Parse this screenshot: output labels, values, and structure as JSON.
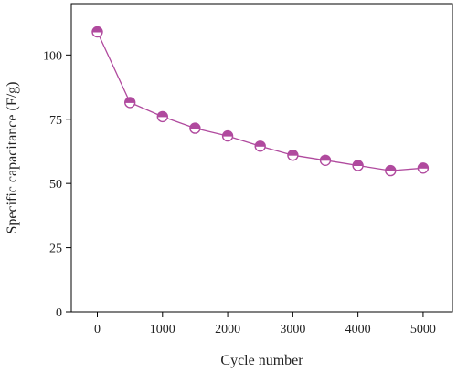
{
  "chart_data": {
    "type": "line",
    "xlabel": "Cycle number",
    "ylabel": "Specific capacitance (F/g)",
    "xlim": [
      -400,
      5450
    ],
    "ylim": [
      0,
      120
    ],
    "xticks": [
      0,
      1000,
      2000,
      3000,
      4000,
      5000
    ],
    "yticks": [
      0,
      25,
      50,
      75,
      100
    ],
    "grid": false,
    "legend": "none",
    "series": [
      {
        "color": "#b04a9e",
        "marker": "half-filled-circle",
        "x": [
          0,
          500,
          1000,
          1500,
          2000,
          2500,
          3000,
          3500,
          4000,
          4500,
          5000
        ],
        "y": [
          109,
          81.5,
          76,
          71.5,
          68.5,
          64.5,
          61,
          59,
          57,
          55,
          56
        ]
      }
    ]
  }
}
